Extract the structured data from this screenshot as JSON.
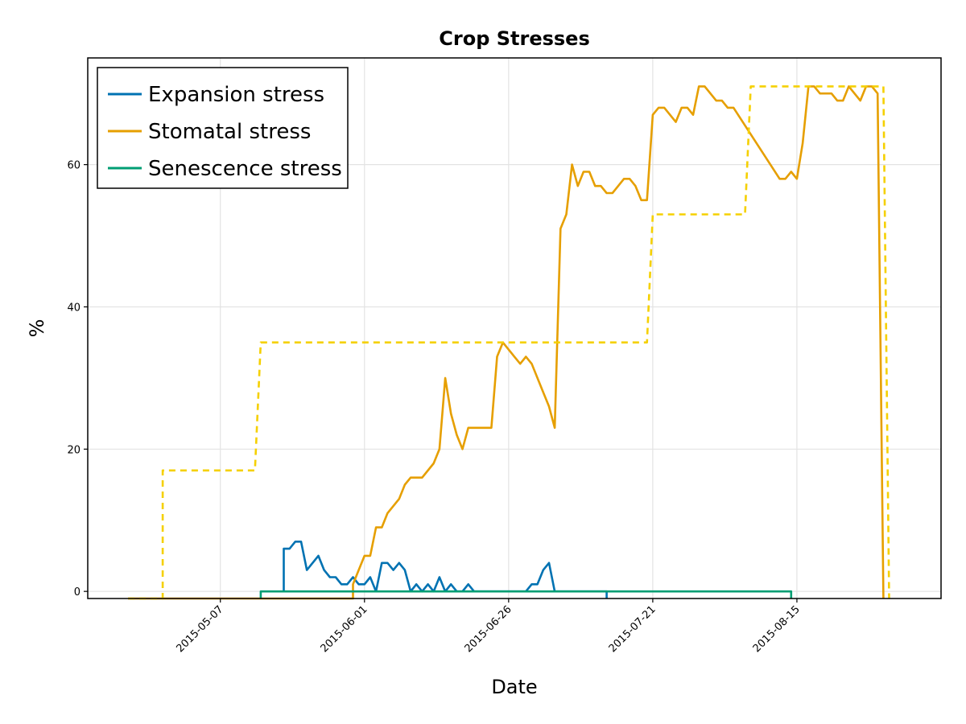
{
  "chart_data": {
    "type": "line",
    "title": "Crop Stresses",
    "xlabel": "Date",
    "ylabel": "%",
    "x_tick_labels": [
      "2015-05-07",
      "2015-06-01",
      "2015-06-26",
      "2015-07-21",
      "2015-08-15"
    ],
    "y_ticks": [
      0,
      20,
      40,
      60
    ],
    "ylim": [
      -1,
      75
    ],
    "xlim": [
      "2015-04-14",
      "2015-09-09"
    ],
    "grid": true,
    "legend_position": "top-left",
    "series": [
      {
        "name": "Expansion stress",
        "color": "#0072b2",
        "style": "solid",
        "points": [
          [
            "2015-05-18",
            0
          ],
          [
            "2015-05-18",
            6
          ],
          [
            "2015-05-19",
            6
          ],
          [
            "2015-05-20",
            7
          ],
          [
            "2015-05-21",
            7
          ],
          [
            "2015-05-22",
            3
          ],
          [
            "2015-05-24",
            5
          ],
          [
            "2015-05-25",
            3
          ],
          [
            "2015-05-26",
            2
          ],
          [
            "2015-05-27",
            2
          ],
          [
            "2015-05-28",
            1
          ],
          [
            "2015-05-29",
            1
          ],
          [
            "2015-05-30",
            2
          ],
          [
            "2015-05-31",
            1
          ],
          [
            "2015-06-01",
            1
          ],
          [
            "2015-06-02",
            2
          ],
          [
            "2015-06-03",
            0
          ],
          [
            "2015-06-04",
            4
          ],
          [
            "2015-06-05",
            4
          ],
          [
            "2015-06-06",
            3
          ],
          [
            "2015-06-07",
            4
          ],
          [
            "2015-06-08",
            3
          ],
          [
            "2015-06-09",
            0
          ],
          [
            "2015-06-10",
            1
          ],
          [
            "2015-06-11",
            0
          ],
          [
            "2015-06-12",
            1
          ],
          [
            "2015-06-13",
            0
          ],
          [
            "2015-06-14",
            2
          ],
          [
            "2015-06-15",
            0
          ],
          [
            "2015-06-16",
            1
          ],
          [
            "2015-06-17",
            0
          ],
          [
            "2015-06-18",
            0
          ],
          [
            "2015-06-19",
            1
          ],
          [
            "2015-06-20",
            0
          ],
          [
            "2015-06-29",
            0
          ],
          [
            "2015-06-30",
            1
          ],
          [
            "2015-07-01",
            1
          ],
          [
            "2015-07-02",
            3
          ],
          [
            "2015-07-03",
            4
          ],
          [
            "2015-07-04",
            0
          ],
          [
            "2015-07-13",
            0
          ],
          [
            "2015-07-13",
            -1
          ]
        ]
      },
      {
        "name": "Stomatal stress",
        "color": "#e69f00",
        "style": "solid",
        "points": [
          [
            "2015-04-21",
            -1
          ],
          [
            "2015-04-27",
            -1
          ],
          [
            "2015-05-30",
            -1
          ],
          [
            "2015-05-30",
            1
          ],
          [
            "2015-05-31",
            3
          ],
          [
            "2015-06-01",
            5
          ],
          [
            "2015-06-02",
            5
          ],
          [
            "2015-06-03",
            9
          ],
          [
            "2015-06-04",
            9
          ],
          [
            "2015-06-05",
            11
          ],
          [
            "2015-06-06",
            12
          ],
          [
            "2015-06-07",
            13
          ],
          [
            "2015-06-08",
            15
          ],
          [
            "2015-06-09",
            16
          ],
          [
            "2015-06-11",
            16
          ],
          [
            "2015-06-13",
            18
          ],
          [
            "2015-06-14",
            20
          ],
          [
            "2015-06-15",
            30
          ],
          [
            "2015-06-16",
            25
          ],
          [
            "2015-06-17",
            22
          ],
          [
            "2015-06-18",
            20
          ],
          [
            "2015-06-19",
            23
          ],
          [
            "2015-06-23",
            23
          ],
          [
            "2015-06-24",
            33
          ],
          [
            "2015-06-25",
            35
          ],
          [
            "2015-06-27",
            33
          ],
          [
            "2015-06-28",
            32
          ],
          [
            "2015-06-29",
            33
          ],
          [
            "2015-06-30",
            32
          ],
          [
            "2015-07-02",
            28
          ],
          [
            "2015-07-03",
            26
          ],
          [
            "2015-07-04",
            23
          ],
          [
            "2015-07-05",
            51
          ],
          [
            "2015-07-06",
            53
          ],
          [
            "2015-07-07",
            60
          ],
          [
            "2015-07-08",
            57
          ],
          [
            "2015-07-09",
            59
          ],
          [
            "2015-07-10",
            59
          ],
          [
            "2015-07-11",
            57
          ],
          [
            "2015-07-12",
            57
          ],
          [
            "2015-07-13",
            56
          ],
          [
            "2015-07-14",
            56
          ],
          [
            "2015-07-16",
            58
          ],
          [
            "2015-07-17",
            58
          ],
          [
            "2015-07-18",
            57
          ],
          [
            "2015-07-19",
            55
          ],
          [
            "2015-07-20",
            55
          ],
          [
            "2015-07-21",
            67
          ],
          [
            "2015-07-22",
            68
          ],
          [
            "2015-07-23",
            68
          ],
          [
            "2015-07-25",
            66
          ],
          [
            "2015-07-26",
            68
          ],
          [
            "2015-07-27",
            68
          ],
          [
            "2015-07-28",
            67
          ],
          [
            "2015-07-29",
            71
          ],
          [
            "2015-07-30",
            71
          ],
          [
            "2015-08-01",
            69
          ],
          [
            "2015-08-02",
            69
          ],
          [
            "2015-08-03",
            68
          ],
          [
            "2015-08-04",
            68
          ],
          [
            "2015-08-12",
            58
          ],
          [
            "2015-08-13",
            58
          ],
          [
            "2015-08-14",
            59
          ],
          [
            "2015-08-15",
            58
          ],
          [
            "2015-08-16",
            63
          ],
          [
            "2015-08-17",
            71
          ],
          [
            "2015-08-18",
            71
          ],
          [
            "2015-08-19",
            70
          ],
          [
            "2015-08-21",
            70
          ],
          [
            "2015-08-22",
            69
          ],
          [
            "2015-08-23",
            69
          ],
          [
            "2015-08-24",
            71
          ],
          [
            "2015-08-26",
            69
          ],
          [
            "2015-08-27",
            71
          ],
          [
            "2015-08-28",
            71
          ],
          [
            "2015-08-29",
            70
          ],
          [
            "2015-08-30",
            -1
          ]
        ]
      },
      {
        "name": "Senescence stress",
        "color": "#009e73",
        "style": "solid",
        "points": [
          [
            "2015-05-14",
            -1
          ],
          [
            "2015-05-14",
            0
          ],
          [
            "2015-08-14",
            0
          ],
          [
            "2015-08-14",
            -1
          ]
        ]
      },
      {
        "color": "#f5d000",
        "style": "dashed",
        "points": [
          [
            "2015-04-21",
            -1
          ],
          [
            "2015-04-27",
            -1
          ],
          [
            "2015-04-27",
            17
          ],
          [
            "2015-05-13",
            17
          ],
          [
            "2015-05-14",
            35
          ],
          [
            "2015-07-20",
            35
          ],
          [
            "2015-07-21",
            53
          ],
          [
            "2015-08-06",
            53
          ],
          [
            "2015-08-07",
            71
          ],
          [
            "2015-08-30",
            71
          ],
          [
            "2015-08-31",
            -1
          ]
        ]
      }
    ]
  }
}
